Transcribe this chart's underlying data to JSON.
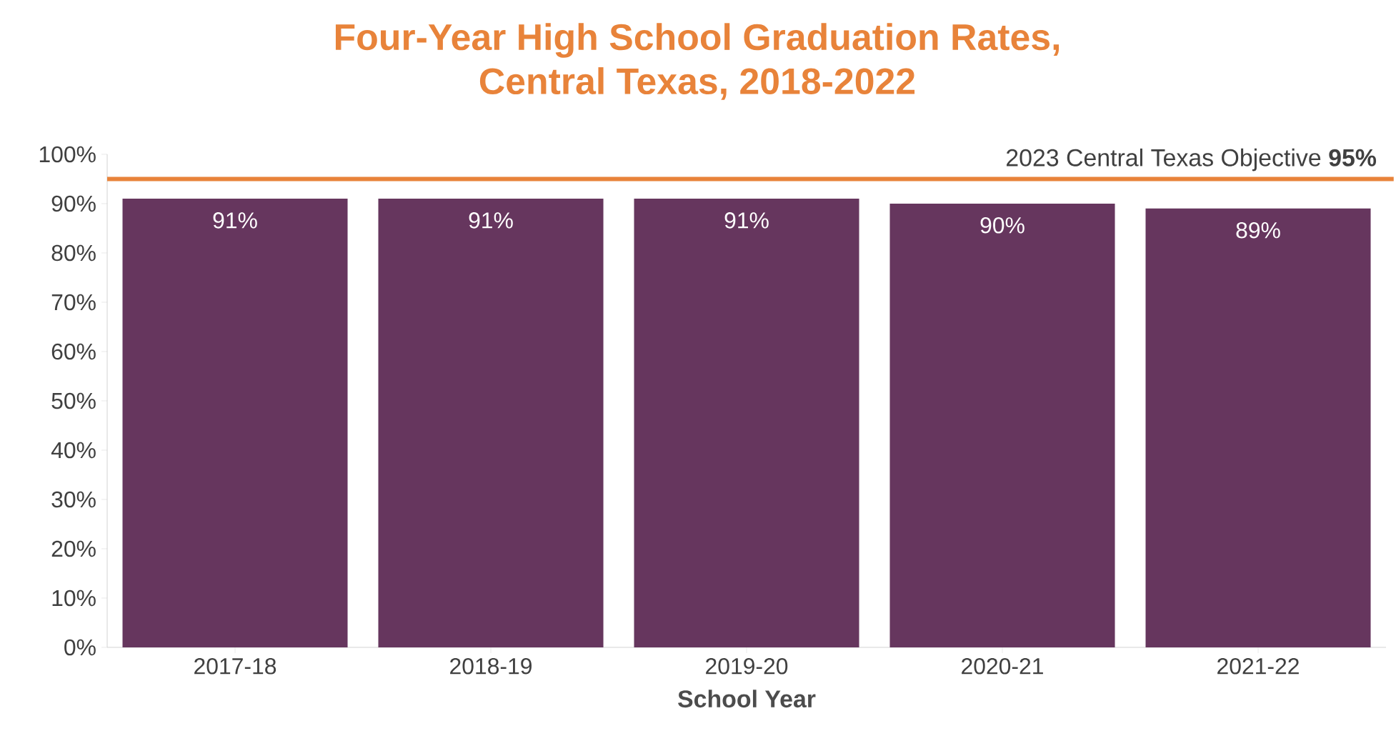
{
  "chart_data": {
    "type": "bar",
    "title": "Four-Year High School Graduation Rates,\nCentral Texas, 2018-2022",
    "xlabel": "School Year",
    "categories": [
      "2017-18",
      "2018-19",
      "2019-20",
      "2020-21",
      "2021-22"
    ],
    "values": [
      91,
      91,
      91,
      90,
      89
    ],
    "color": "#66365e",
    "value_labels": [
      "91%",
      "91%",
      "91%",
      "90%",
      "89%"
    ],
    "ylim": [
      0,
      100
    ],
    "yticks": [
      {
        "value": 0,
        "label": "0%"
      },
      {
        "value": 10,
        "label": "10%"
      },
      {
        "value": 20,
        "label": "20%"
      },
      {
        "value": 30,
        "label": "30%"
      },
      {
        "value": 40,
        "label": "40%"
      },
      {
        "value": 50,
        "label": "50%"
      },
      {
        "value": 60,
        "label": "60%"
      },
      {
        "value": 70,
        "label": "70%"
      },
      {
        "value": 80,
        "label": "80%"
      },
      {
        "value": 90,
        "label": "90%"
      },
      {
        "value": 100,
        "label": "100%"
      }
    ],
    "ref_lines": [
      {
        "axis": "y",
        "value": 95,
        "label": "2023 Central Texas Objective **95%**",
        "color": "#e8833a"
      }
    ],
    "grid": false
  }
}
